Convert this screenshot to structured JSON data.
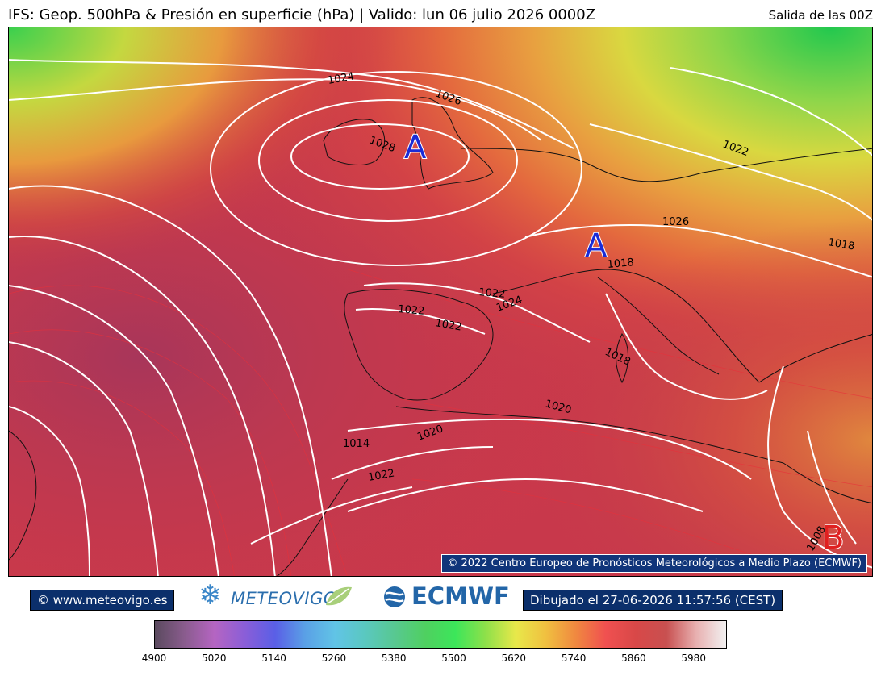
{
  "header": {
    "title": "IFS: Geop. 500hPa & Presión en superficie (hPa) | Valido: lun 06 julio 2026 0000Z",
    "run": "Salida de las 00Z"
  },
  "map": {
    "highs": [
      {
        "label": "A",
        "color": "#1a2bd6"
      },
      {
        "label": "A",
        "color": "#1a2bd6"
      }
    ],
    "low": {
      "label": "B",
      "color": "#e02020"
    },
    "isobar_labels": [
      "1024",
      "1026",
      "1028",
      "1022",
      "1026",
      "1018",
      "1018",
      "1022",
      "1024",
      "1022",
      "1022",
      "1018",
      "1020",
      "1020",
      "1014",
      "1022",
      "1008"
    ],
    "copyright": "© 2022 Centro Europeo de Pronósticos Meteorológicos a Medio Plazo (ECMWF)"
  },
  "footer": {
    "site": "© www.meteovigo.es",
    "logo_meteovigo": "METEOVIGO",
    "logo_ecmwf": "ECMWF",
    "drawn": "Dibujado el 27-06-2026 11:57:56 (CEST)"
  },
  "colorbar": {
    "ticks": [
      "4900",
      "5020",
      "5140",
      "5260",
      "5380",
      "5500",
      "5620",
      "5740",
      "5860",
      "5980"
    ],
    "colors": [
      "#5a4a5e",
      "#8a5c8e",
      "#b565c2",
      "#8a5ed8",
      "#5a5fe6",
      "#5aa0e6",
      "#61c4e6",
      "#5ac8c0",
      "#58c890",
      "#4fd060",
      "#3ce65a",
      "#8ee04a",
      "#e8e84a",
      "#f0c040",
      "#f08840",
      "#f05050",
      "#d84848",
      "#c85050",
      "#e8b0b0",
      "#f2f2f2"
    ]
  },
  "colors": {
    "badge_bg": "#0b2f6b",
    "map_red": "#c43a4a",
    "map_green": "#3ccc55",
    "isobar": "#ffffff"
  }
}
